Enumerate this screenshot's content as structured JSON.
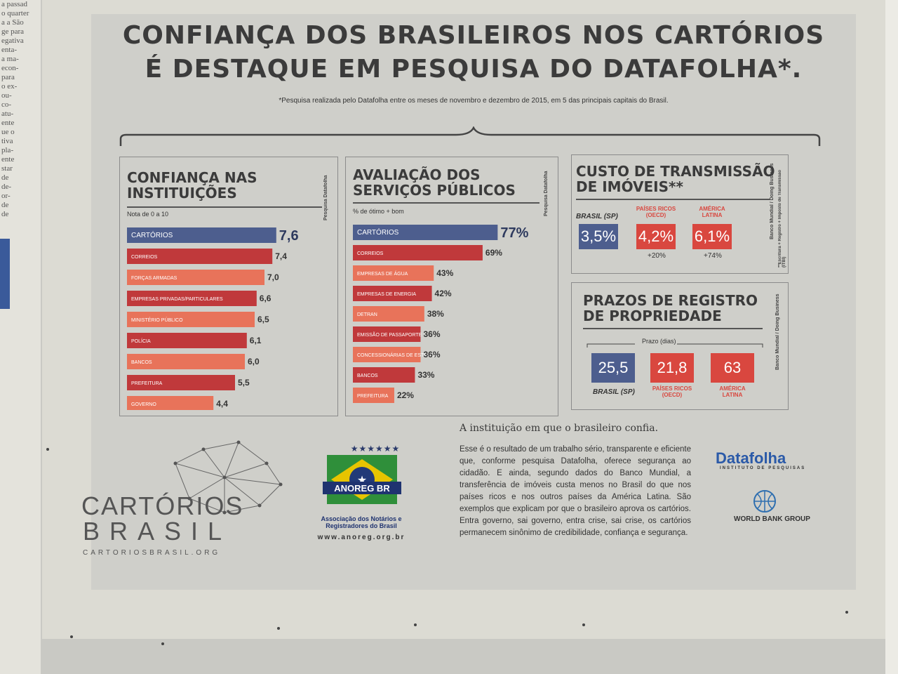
{
  "left_page_lines": [
    "a passad",
    "o quarter",
    "a a São",
    "ge para",
    "egativa",
    "enta-",
    "a ma-",
    "econ-",
    "para",
    "o ex-",
    "ou-",
    "co-",
    "atu-",
    "ente",
    "ue o",
    "tiva",
    "pla-",
    "ente",
    "star",
    "de",
    "de-",
    "or-",
    "de",
    "de"
  ],
  "header": {
    "title_line1": "CONFIANÇA DOS BRASILEIROS NOS CARTÓRIOS",
    "title_line2": "É DESTAQUE EM PESQUISA DO DATAFOLHA*.",
    "footnote": "*Pesquisa realizada pelo Datafolha entre os meses de novembro e dezembro de 2015, em 5 das principais capitais do Brasil."
  },
  "chart_data": [
    {
      "type": "bar",
      "title": "CONFIANÇA NAS INSTITUIÇÕES",
      "title_lines": [
        "CONFIANÇA NAS",
        "INSTITUIÇÕES"
      ],
      "subtitle": "Nota de 0 a 10",
      "source": "Pesquisa Datafolha",
      "orientation": "horizontal",
      "categories": [
        "CARTÓRIOS",
        "CORREIOS",
        "FORÇAS ARMADAS",
        "EMPRESAS PRIVADAS/PARTICULARES",
        "MINISTÉRIO PÚBLICO",
        "POLÍCIA",
        "BANCOS",
        "PREFEITURA",
        "GOVERNO"
      ],
      "values": [
        7.6,
        7.4,
        7.0,
        6.6,
        6.5,
        6.1,
        6.0,
        5.5,
        4.4
      ],
      "value_labels": [
        "7,6",
        "7,4",
        "7,0",
        "6,6",
        "6,5",
        "6,1",
        "6,0",
        "5,5",
        "4,4"
      ],
      "xlim": [
        0,
        10
      ],
      "colors": [
        "#4d5e8e",
        "#c0393b",
        "#e8735a",
        "#c0393b",
        "#e8735a",
        "#c0393b",
        "#e8735a",
        "#c0393b",
        "#e8735a"
      ]
    },
    {
      "type": "bar",
      "title": "AVALIAÇÃO DOS SERVIÇOS PÚBLICOS",
      "title_lines": [
        "AVALIAÇÃO DOS",
        "SERVIÇOS PÚBLICOS"
      ],
      "subtitle": "% de ótimo + bom",
      "source": "Pesquisa Datafolha",
      "orientation": "horizontal",
      "categories": [
        "CARTÓRIOS",
        "CORREIOS",
        "EMPRESAS DE ÁGUA",
        "EMPRESAS DE ENERGIA",
        "DETRAN",
        "EMISSÃO DE PASSAPORTE",
        "CONCESSIONÁRIAS DE ESTRADA",
        "BANCOS",
        "PREFEITURA"
      ],
      "values": [
        77,
        69,
        43,
        42,
        38,
        36,
        36,
        33,
        22
      ],
      "value_labels": [
        "77%",
        "69%",
        "43%",
        "42%",
        "38%",
        "36%",
        "36%",
        "33%",
        "22%"
      ],
      "xlim": [
        0,
        100
      ],
      "colors": [
        "#4d5e8e",
        "#c0393b",
        "#e8735a",
        "#c0393b",
        "#e8735a",
        "#c0393b",
        "#e8735a",
        "#c0393b",
        "#e8735a"
      ]
    }
  ],
  "transmissao": {
    "title_lines": [
      "CUSTO DE TRANSMISSÃO",
      "DE IMÓVEIS**"
    ],
    "source": "Banco Mundial / Doing Business",
    "footnote": "**Escritura + Registro + Imposto de Transmissão (ITBI)",
    "brasil_label": "BRASIL (SP)",
    "brasil_value": "3,5%",
    "ricos_label_1": "PAÍSES RICOS",
    "ricos_label_2": "(OECD)",
    "ricos_value": "4,2%",
    "ricos_diff": "+20%",
    "latina_label_1": "AMÉRICA",
    "latina_label_2": "LATINA",
    "latina_value": "6,1%",
    "latina_diff": "+74%",
    "colors": {
      "brasil": "#4d5e8e",
      "others": "#d9473f"
    }
  },
  "prazos": {
    "title_lines": [
      "PRAZOS DE REGISTRO",
      "DE PROPRIEDADE"
    ],
    "source": "Banco Mundial / Doing Business",
    "axis_label": "Prazo (dias)",
    "brasil_value": "25,5",
    "brasil_label": "BRASIL (SP)",
    "ricos_value": "21,8",
    "ricos_label_1": "PAÍSES RICOS",
    "ricos_label_2": "(OECD)",
    "latina_value": "63",
    "latina_label_1": "AMÉRICA",
    "latina_label_2": "LATINA"
  },
  "footer": {
    "cartorios_line1": "CARTÓRIOS",
    "cartorios_line2": "BRASIL",
    "cartorios_url": "CARTORIOSBRASIL.ORG",
    "anoreg_name": "ANOREG BR",
    "anoreg_stars": "★★★★★★",
    "anoreg_desc1": "Associação dos Notários e",
    "anoreg_desc2": "Registradores do Brasil",
    "anoreg_url": "www.anoreg.org.br",
    "headline": "A instituição em que o brasileiro confia.",
    "body": "Esse é o resultado de um trabalho sério, transparente e eficiente que, conforme pesquisa Datafolha, oferece segurança ao cidadão. E ainda, segundo dados do Banco Mundial, a transferência de imóveis custa menos no Brasil do que nos países ricos e nos outros países da América Latina. São exemplos que explicam por que o brasileiro aprova os cartórios. Entra governo, sai governo, entra crise, sai crise, os cartórios permanecem sinônimo de credibilidade, confiança e segurança.",
    "datafolha": "Datafolha",
    "datafolha_sub": "INSTITUTO DE PESQUISAS",
    "worldbank": "WORLD BANK GROUP"
  }
}
